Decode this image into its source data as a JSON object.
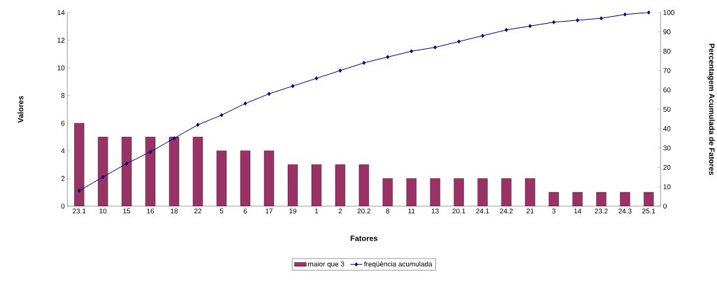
{
  "chart_data": {
    "type": "bar",
    "xlabel": "Fatores",
    "ylabel": "Valores",
    "y2label": "Percentagem Acumulada de Fatores",
    "categories": [
      "23.1",
      "10",
      "15",
      "16",
      "18",
      "22",
      "5",
      "6",
      "17",
      "19",
      "1",
      "2",
      "20.2",
      "8",
      "11",
      "13",
      "20.1",
      "24.1",
      "24.2",
      "21",
      "3",
      "14",
      "23.2",
      "24.3",
      "25.1"
    ],
    "series": [
      {
        "name": "maior que 3",
        "color": "#993366",
        "values": [
          6,
          5,
          5,
          5,
          5,
          5,
          4,
          4,
          4,
          3,
          3,
          3,
          3,
          2,
          2,
          2,
          2,
          2,
          2,
          2,
          1,
          1,
          1,
          1,
          1
        ]
      },
      {
        "name": "freqüência acumulada",
        "type": "line",
        "axis": "y2",
        "color": "#000080",
        "marker": "diamond",
        "values": [
          8,
          15,
          22,
          28,
          35,
          42,
          47,
          53,
          58,
          62,
          66,
          70,
          74,
          77,
          80,
          82,
          85,
          88,
          91,
          93,
          95,
          96,
          97,
          99,
          100
        ]
      }
    ],
    "ylim": [
      0,
      14
    ],
    "yticks": [
      0,
      2,
      4,
      6,
      8,
      10,
      12,
      14
    ],
    "y2lim": [
      0,
      100
    ],
    "y2ticks": [
      0,
      10,
      20,
      30,
      40,
      50,
      60,
      70,
      80,
      90,
      100
    ],
    "legend": "bottom"
  }
}
